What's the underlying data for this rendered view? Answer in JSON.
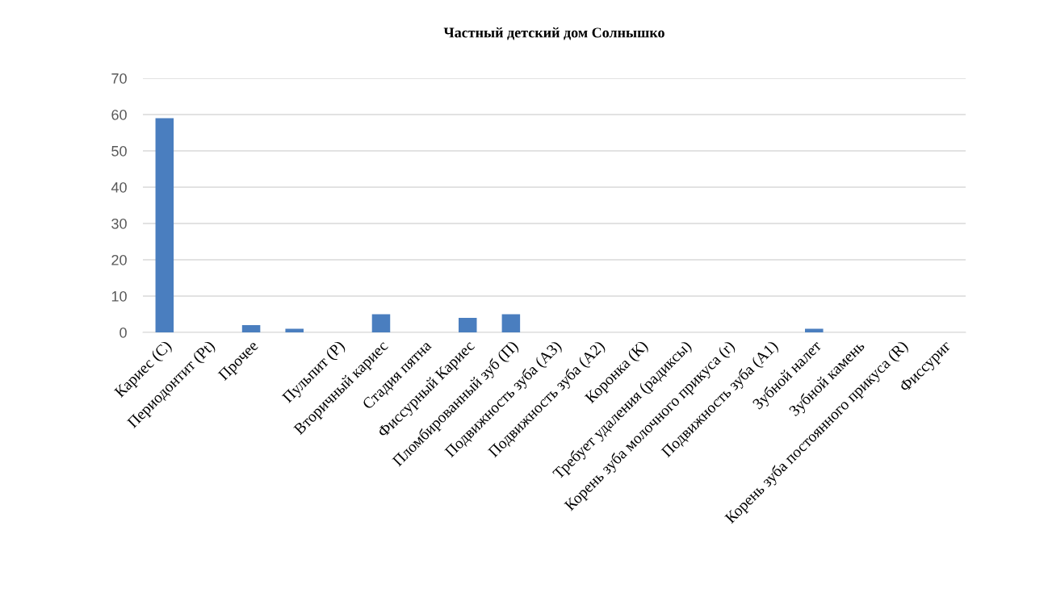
{
  "chart_data": {
    "type": "bar",
    "title": "Частный детский дом Солнышко",
    "categories": [
      "Кариес (С)",
      "Периодонтит (Pt)",
      "Прочее",
      null,
      "Пульпит (P)",
      "Вторичный кариес",
      "Стадия пятна",
      "Фиссурный Кариес",
      "Пломбированный зуб (П)",
      "Подвижность зуба (А3)",
      "Подвижность зуба (А2)",
      "Коронка (К)",
      "Требует удаления (радиксы)",
      "Корень зуба молочного прикуса (r)",
      "Подвижность зуба (А1)",
      "Зубной налет",
      "Зубной камень",
      "Корень зуба постоянного прикуса (R)",
      "Фиссуриг"
    ],
    "values": [
      59,
      0,
      2,
      1,
      0,
      5,
      0,
      4,
      5,
      0,
      0,
      0,
      0,
      0,
      0,
      1,
      0,
      0,
      0
    ],
    "color": "#4a7ebf",
    "ylim": [
      0,
      70
    ],
    "yticks": [
      0,
      10,
      20,
      30,
      40,
      50,
      60,
      70
    ],
    "grid": "y"
  }
}
